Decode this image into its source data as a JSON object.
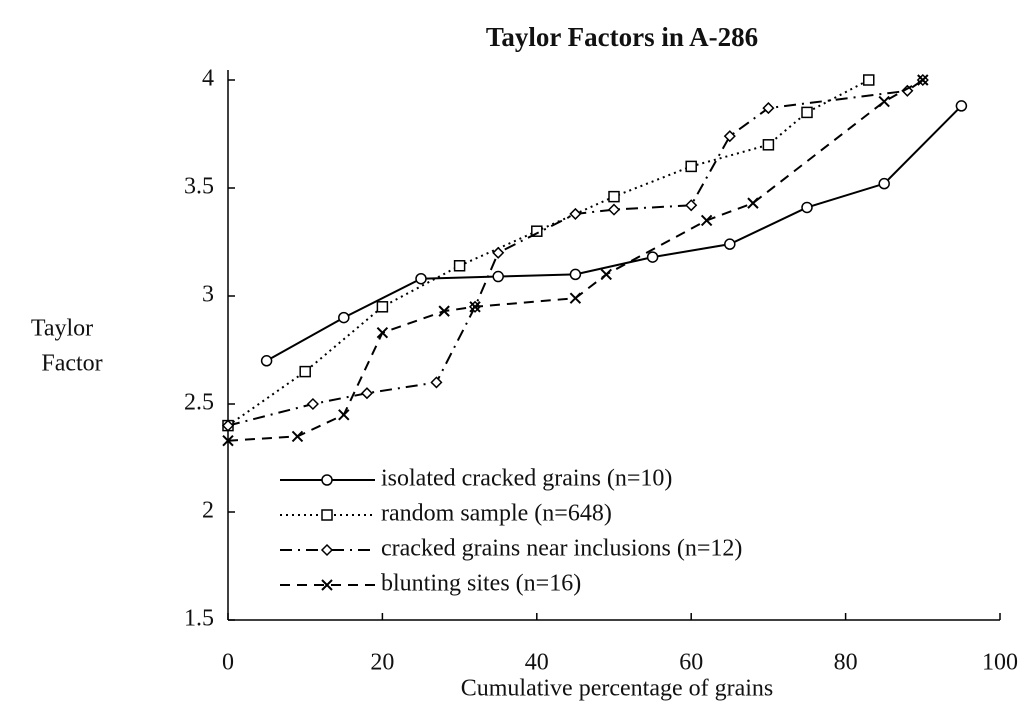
{
  "chart_data": {
    "type": "line",
    "title": "Taylor Factors in A-286",
    "x_label": "Cumulative percentage of grains",
    "y_label_lines": [
      "Taylor",
      "Factor"
    ],
    "xlim": [
      0,
      100
    ],
    "xticks": [
      0,
      20,
      40,
      60,
      80,
      100
    ],
    "ylim": [
      1.5,
      4
    ],
    "yticks": [
      1.5,
      2,
      2.5,
      3,
      3.5,
      4
    ],
    "grid": false,
    "legend": "lower left",
    "series": [
      {
        "name": "isolated cracked grains (n=10)",
        "color": "#000000",
        "linestyle": "solid",
        "marker": "circle",
        "x": [
          5,
          15,
          25,
          35,
          45,
          55,
          65,
          75,
          85,
          95
        ],
        "values": [
          2.7,
          2.9,
          3.08,
          3.09,
          3.1,
          3.18,
          3.24,
          3.41,
          3.52,
          3.88
        ]
      },
      {
        "name": "random sample (n=648)",
        "color": "#000000",
        "linestyle": "dotted",
        "marker": "square",
        "x": [
          0,
          10,
          20,
          30,
          40,
          50,
          60,
          70,
          75,
          83
        ],
        "values": [
          2.4,
          2.65,
          2.95,
          3.14,
          3.3,
          3.46,
          3.6,
          3.7,
          3.85,
          4.0
        ]
      },
      {
        "name": "cracked grains near inclusions (n=12)",
        "color": "#000000",
        "linestyle": "dashdot",
        "marker": "diamond",
        "x": [
          0,
          11,
          18,
          27,
          32,
          35,
          45,
          50,
          60,
          65,
          70,
          88,
          90
        ],
        "values": [
          2.4,
          2.5,
          2.55,
          2.6,
          2.95,
          3.2,
          3.38,
          3.4,
          3.42,
          3.74,
          3.87,
          3.95,
          4.0
        ]
      },
      {
        "name": "blunting sites (n=16)",
        "color": "#000000",
        "linestyle": "dashed",
        "marker": "x",
        "x": [
          0,
          9,
          15,
          20,
          28,
          32,
          45,
          49,
          62,
          68,
          85,
          90
        ],
        "values": [
          2.33,
          2.35,
          2.45,
          2.83,
          2.93,
          2.95,
          2.99,
          3.1,
          3.35,
          3.43,
          3.9,
          4.0
        ]
      }
    ]
  }
}
